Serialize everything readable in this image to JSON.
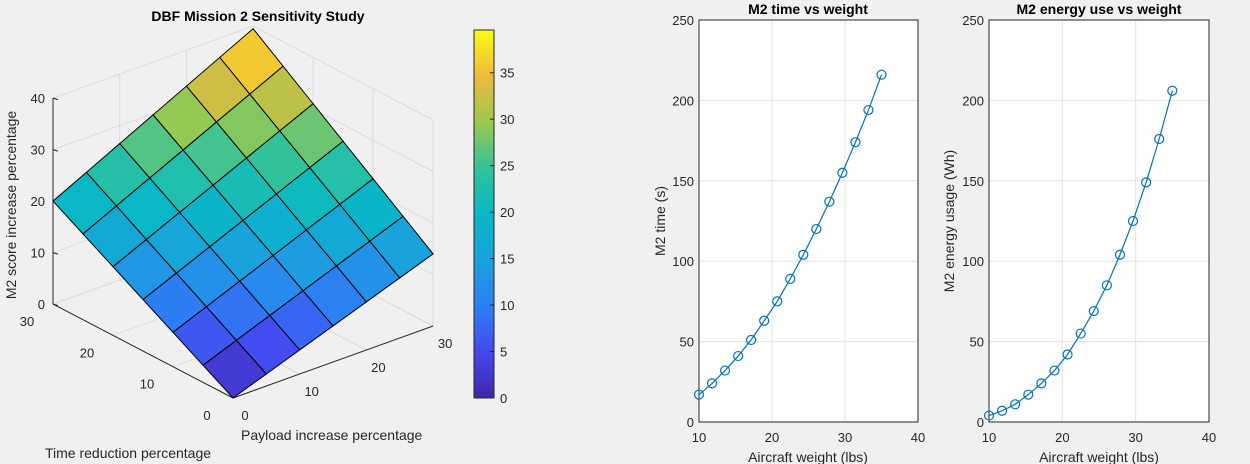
{
  "chart_data": [
    {
      "type": "surface",
      "title": "DBF Mission 2 Sensitivity Study",
      "xlabel": "Payload increase percentage",
      "ylabel": "Time reduction percentage",
      "zlabel": "M2 score increase percentage",
      "x_ticks": [
        "0",
        "10",
        "20",
        "30"
      ],
      "y_ticks": [
        "0",
        "10",
        "20",
        "30"
      ],
      "z_ticks": [
        "0",
        "10",
        "20",
        "30",
        "40"
      ],
      "xlim": [
        0,
        30
      ],
      "ylim": [
        0,
        30
      ],
      "zlim": [
        0,
        40
      ],
      "grid": true,
      "x_values": [
        0,
        5,
        10,
        15,
        20,
        25,
        30
      ],
      "y_values": [
        0,
        5,
        10,
        15,
        20,
        25,
        30
      ],
      "z_corners": {
        "x0_y0": 0,
        "x0_y30": 20,
        "x30_y0": 14,
        "x30_y30": 39.5
      },
      "colormap": "parula",
      "colorbar": {
        "ticks": [
          "0",
          "5",
          "10",
          "15",
          "20",
          "25",
          "30",
          "35"
        ],
        "range": [
          0,
          39.6
        ]
      }
    },
    {
      "type": "line",
      "title": "M2 time vs weight",
      "xlabel": "Aircraft weight (lbs)",
      "ylabel": "M2 time (s)",
      "xlim": [
        10,
        40
      ],
      "ylim": [
        0,
        250
      ],
      "x_ticks": [
        "10",
        "20",
        "30",
        "40"
      ],
      "y_ticks": [
        "0",
        "50",
        "100",
        "150",
        "200",
        "250"
      ],
      "grid": true,
      "marker": "circle",
      "color": "#0072bd",
      "x": [
        10,
        11.79,
        13.57,
        15.36,
        17.14,
        18.93,
        20.71,
        22.5,
        24.29,
        26.07,
        27.86,
        29.64,
        31.43,
        33.21,
        35
      ],
      "y": [
        17,
        24,
        32,
        41,
        51,
        63,
        75,
        89,
        104,
        120,
        137,
        155,
        174,
        194,
        216
      ]
    },
    {
      "type": "line",
      "title": "M2 energy use vs weight",
      "xlabel": "Aircraft weight (lbs)",
      "ylabel": "M2 energy usage (Wh)",
      "xlim": [
        10,
        40
      ],
      "ylim": [
        0,
        250
      ],
      "x_ticks": [
        "10",
        "20",
        "30",
        "40"
      ],
      "y_ticks": [
        "0",
        "50",
        "100",
        "150",
        "200",
        "250"
      ],
      "grid": true,
      "marker": "circle",
      "color": "#0072bd",
      "x": [
        10,
        11.79,
        13.57,
        15.36,
        17.14,
        18.93,
        20.71,
        22.5,
        24.29,
        26.07,
        27.86,
        29.64,
        31.43,
        33.21,
        35
      ],
      "y": [
        4,
        7,
        11,
        17,
        24,
        32,
        42,
        55,
        69,
        85,
        104,
        125,
        149,
        176,
        206
      ]
    }
  ]
}
